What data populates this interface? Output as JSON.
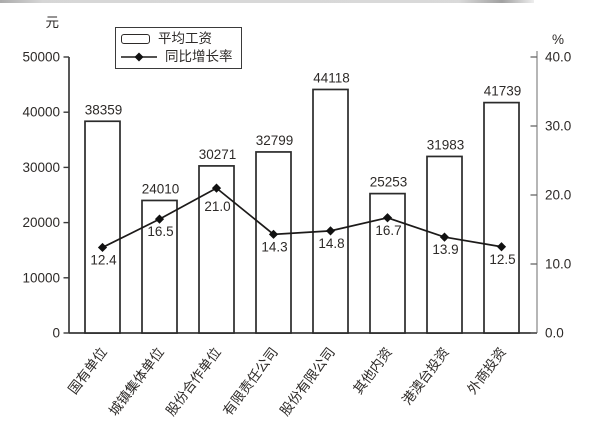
{
  "chart_data": {
    "type": "combo",
    "categories": [
      "国有单位",
      "城镇集体单位",
      "股份合作单位",
      "有限责任公司",
      "股份有限公司",
      "其他内资",
      "港澳台投资",
      "外商投资"
    ],
    "series": [
      {
        "name": "平均工资",
        "type": "bar",
        "axis": "left",
        "values": [
          38359,
          24010,
          30271,
          32799,
          44118,
          25253,
          31983,
          41739
        ]
      },
      {
        "name": "同比增长率",
        "type": "line",
        "axis": "right",
        "values": [
          12.4,
          16.5,
          21.0,
          14.3,
          14.8,
          16.7,
          13.9,
          12.5
        ]
      }
    ],
    "left_axis": {
      "unit": "元",
      "min": 0,
      "max": 50000,
      "tick_step": 10000,
      "tick_labels": [
        "50000",
        "40000",
        "30000",
        "20000",
        "10000",
        "0"
      ]
    },
    "right_axis": {
      "unit": "%",
      "min": 0,
      "max": 40,
      "tick_step": 10,
      "tick_labels": [
        "40.0",
        "30.0",
        "20.0",
        "10.0",
        "0.0"
      ]
    },
    "legend": {
      "position": "top",
      "entries": [
        "平均工资",
        "同比增长率"
      ]
    },
    "grid": false,
    "data_labels": true
  },
  "colors": {
    "ink": "#2d2a28",
    "axis": "#3a3a3a",
    "right_axis": "#8f8f8f",
    "bar_fill": "#ffffff",
    "line": "#1c1a19",
    "background": "#ffffff"
  }
}
